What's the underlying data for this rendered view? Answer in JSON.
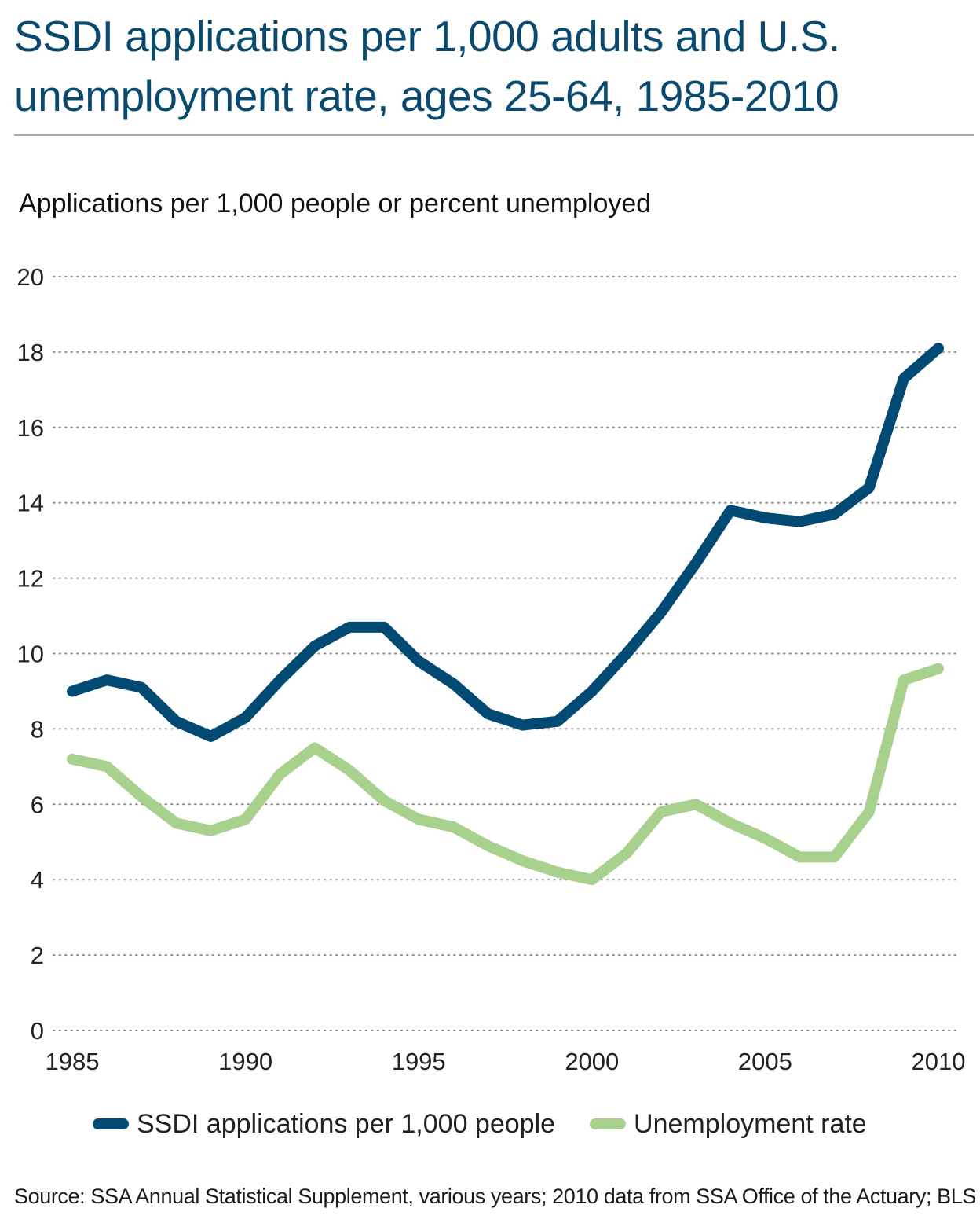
{
  "chart_data": {
    "type": "line",
    "title": "SSDI applications per 1,000 adults and U.S. unemployment rate, ages 25-64, 1985-2010",
    "ylabel": "Applications per 1,000 people or percent unemployed",
    "xlabel": "",
    "ylim": [
      0,
      20
    ],
    "yticks": [
      "0",
      "2",
      "4",
      "6",
      "8",
      "10",
      "12",
      "14",
      "16",
      "18",
      "20"
    ],
    "xlim": [
      1985,
      2010
    ],
    "xticks": [
      "1985",
      "1990",
      "1995",
      "2000",
      "2005",
      "2010"
    ],
    "grid": "horizontal dotted",
    "legend_position": "bottom",
    "x": [
      1985,
      1986,
      1987,
      1988,
      1989,
      1990,
      1991,
      1992,
      1993,
      1994,
      1995,
      1996,
      1997,
      1998,
      1999,
      2000,
      2001,
      2002,
      2003,
      2004,
      2005,
      2006,
      2007,
      2008,
      2009,
      2010
    ],
    "series": [
      {
        "name": "SSDI applications per 1,000 people",
        "color": "#004a73",
        "values": [
          9.0,
          9.3,
          9.1,
          8.2,
          7.8,
          8.3,
          9.3,
          10.2,
          10.7,
          10.7,
          9.8,
          9.2,
          8.4,
          8.1,
          8.2,
          9.0,
          10.0,
          11.1,
          12.4,
          13.8,
          13.6,
          13.5,
          13.7,
          14.4,
          17.3,
          18.1
        ]
      },
      {
        "name": "Unemployment rate",
        "color": "#a9d18e",
        "values": [
          7.2,
          7.0,
          6.2,
          5.5,
          5.3,
          5.6,
          6.8,
          7.5,
          6.9,
          6.1,
          5.6,
          5.4,
          4.9,
          4.5,
          4.2,
          4.0,
          4.7,
          5.8,
          6.0,
          5.5,
          5.1,
          4.6,
          4.6,
          5.8,
          9.3,
          9.6
        ]
      }
    ],
    "source": "Source: SSA Annual Statistical Supplement, various years; 2010 data from SSA Office of the Actuary; BLS"
  }
}
